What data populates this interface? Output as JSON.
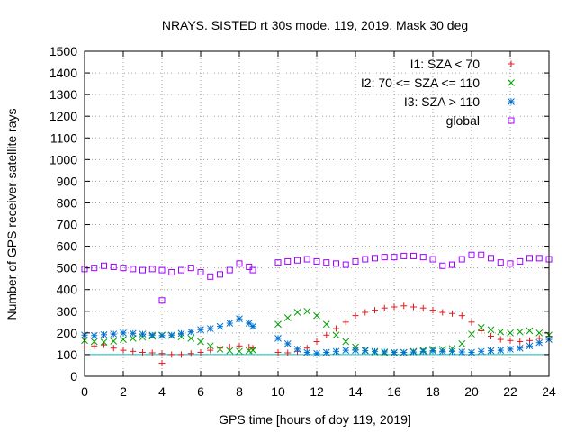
{
  "chart_data": {
    "type": "scatter",
    "title": "NRAYS. SISTED rt 30s mode. 119, 2019. Mask 30 deg",
    "xlabel": "GPS time [hours of doy 119, 2019]",
    "ylabel": "Number of GPS receiver-satellite rays",
    "xlim": [
      0,
      24
    ],
    "ylim": [
      0,
      1500
    ],
    "xticks": [
      0,
      2,
      4,
      6,
      8,
      10,
      12,
      14,
      16,
      18,
      20,
      22,
      24
    ],
    "yticks": [
      0,
      100,
      200,
      300,
      400,
      500,
      600,
      700,
      800,
      900,
      1000,
      1100,
      1200,
      1300,
      1400,
      1500
    ],
    "grid": true,
    "legend_position": "top-right",
    "reference_line": {
      "y": 100,
      "color": "#00c0c0"
    },
    "series": [
      {
        "name": "I1: SZA < 70",
        "color": "#e41a1c",
        "marker": "plus",
        "x": [
          0,
          0.5,
          1,
          1.5,
          2,
          2.5,
          3,
          3.5,
          4,
          4.5,
          5,
          5.5,
          6,
          6.5,
          7,
          7.5,
          8,
          8.5,
          8.7,
          10,
          10.5,
          11,
          11.5,
          12,
          12.5,
          13,
          13.5,
          14,
          14.5,
          15,
          15.5,
          16,
          16.5,
          17,
          17.5,
          18,
          18.5,
          19,
          19.5,
          20,
          20.5,
          21,
          21.5,
          22,
          22.5,
          23,
          23.5,
          24
        ],
        "y": [
          135,
          140,
          145,
          130,
          120,
          115,
          110,
          108,
          105,
          100,
          100,
          105,
          110,
          120,
          130,
          135,
          140,
          135,
          130,
          110,
          108,
          115,
          130,
          160,
          190,
          220,
          250,
          280,
          295,
          305,
          315,
          320,
          325,
          320,
          315,
          305,
          295,
          290,
          280,
          250,
          210,
          185,
          170,
          165,
          160,
          165,
          175,
          185
        ]
      },
      {
        "name": "I2: 70 <= SZA <= 110",
        "color": "#00a000",
        "marker": "cross",
        "x": [
          0,
          0.5,
          1,
          1.5,
          2,
          2.5,
          3,
          3.5,
          4,
          4.5,
          5,
          5.5,
          6,
          6.5,
          7,
          7.5,
          8,
          8.5,
          8.7,
          10,
          10.5,
          11,
          11.5,
          12,
          12.5,
          13,
          13.5,
          14,
          14.5,
          15,
          15.5,
          16,
          16.5,
          17,
          17.5,
          18,
          18.5,
          19,
          19.5,
          20,
          20.5,
          21,
          21.5,
          22,
          22.5,
          23,
          23.5,
          24
        ],
        "y": [
          165,
          160,
          158,
          162,
          170,
          175,
          180,
          185,
          190,
          188,
          182,
          175,
          160,
          140,
          125,
          118,
          115,
          118,
          120,
          240,
          270,
          295,
          300,
          280,
          240,
          190,
          160,
          135,
          120,
          112,
          108,
          108,
          110,
          115,
          120,
          125,
          125,
          128,
          150,
          195,
          225,
          215,
          205,
          200,
          205,
          210,
          200,
          190
        ]
      },
      {
        "name": "I3: SZA > 110",
        "color": "#0070d0",
        "marker": "star",
        "x": [
          0,
          0.5,
          1,
          1.5,
          2,
          2.5,
          3,
          3.5,
          4,
          4.5,
          5,
          5.5,
          6,
          6.5,
          7,
          7.5,
          8,
          8.5,
          8.7,
          10,
          10.5,
          11,
          11.5,
          12,
          12.5,
          13,
          13.5,
          14,
          14.5,
          15,
          15.5,
          16,
          16.5,
          17,
          17.5,
          18,
          18.5,
          19,
          19.5,
          20,
          20.5,
          21,
          21.5,
          22,
          22.5,
          23,
          23.5,
          24
        ],
        "y": [
          190,
          188,
          192,
          195,
          200,
          198,
          195,
          190,
          188,
          190,
          198,
          205,
          215,
          220,
          230,
          245,
          265,
          245,
          230,
          175,
          150,
          125,
          110,
          105,
          110,
          115,
          120,
          120,
          118,
          115,
          112,
          110,
          110,
          112,
          115,
          118,
          115,
          115,
          112,
          110,
          115,
          118,
          120,
          125,
          130,
          140,
          155,
          170
        ]
      },
      {
        "name": "global",
        "color": "#a000ff",
        "marker": "square",
        "x": [
          0,
          0.5,
          1,
          1.5,
          2,
          2.5,
          3,
          3.5,
          4,
          4.5,
          5,
          5.5,
          6,
          6.5,
          7,
          7.5,
          8,
          8.5,
          8.7,
          10,
          10.5,
          11,
          11.5,
          12,
          12.5,
          13,
          13.5,
          14,
          14.5,
          15,
          15.5,
          16,
          16.5,
          17,
          17.5,
          18,
          18.5,
          19,
          19.5,
          20,
          20.5,
          21,
          21.5,
          22,
          22.5,
          23,
          23.5,
          24
        ],
        "y": [
          495,
          500,
          510,
          505,
          500,
          495,
          490,
          495,
          490,
          480,
          490,
          500,
          480,
          460,
          470,
          490,
          520,
          505,
          490,
          525,
          530,
          535,
          540,
          530,
          525,
          520,
          515,
          530,
          540,
          545,
          550,
          550,
          555,
          555,
          550,
          540,
          510,
          515,
          540,
          560,
          560,
          545,
          525,
          520,
          530,
          545,
          545,
          540
        ]
      }
    ],
    "outliers": [
      {
        "series": "global",
        "x": 4,
        "y": 350
      },
      {
        "series": "I1: SZA < 70",
        "x": 4,
        "y": 60
      }
    ]
  }
}
